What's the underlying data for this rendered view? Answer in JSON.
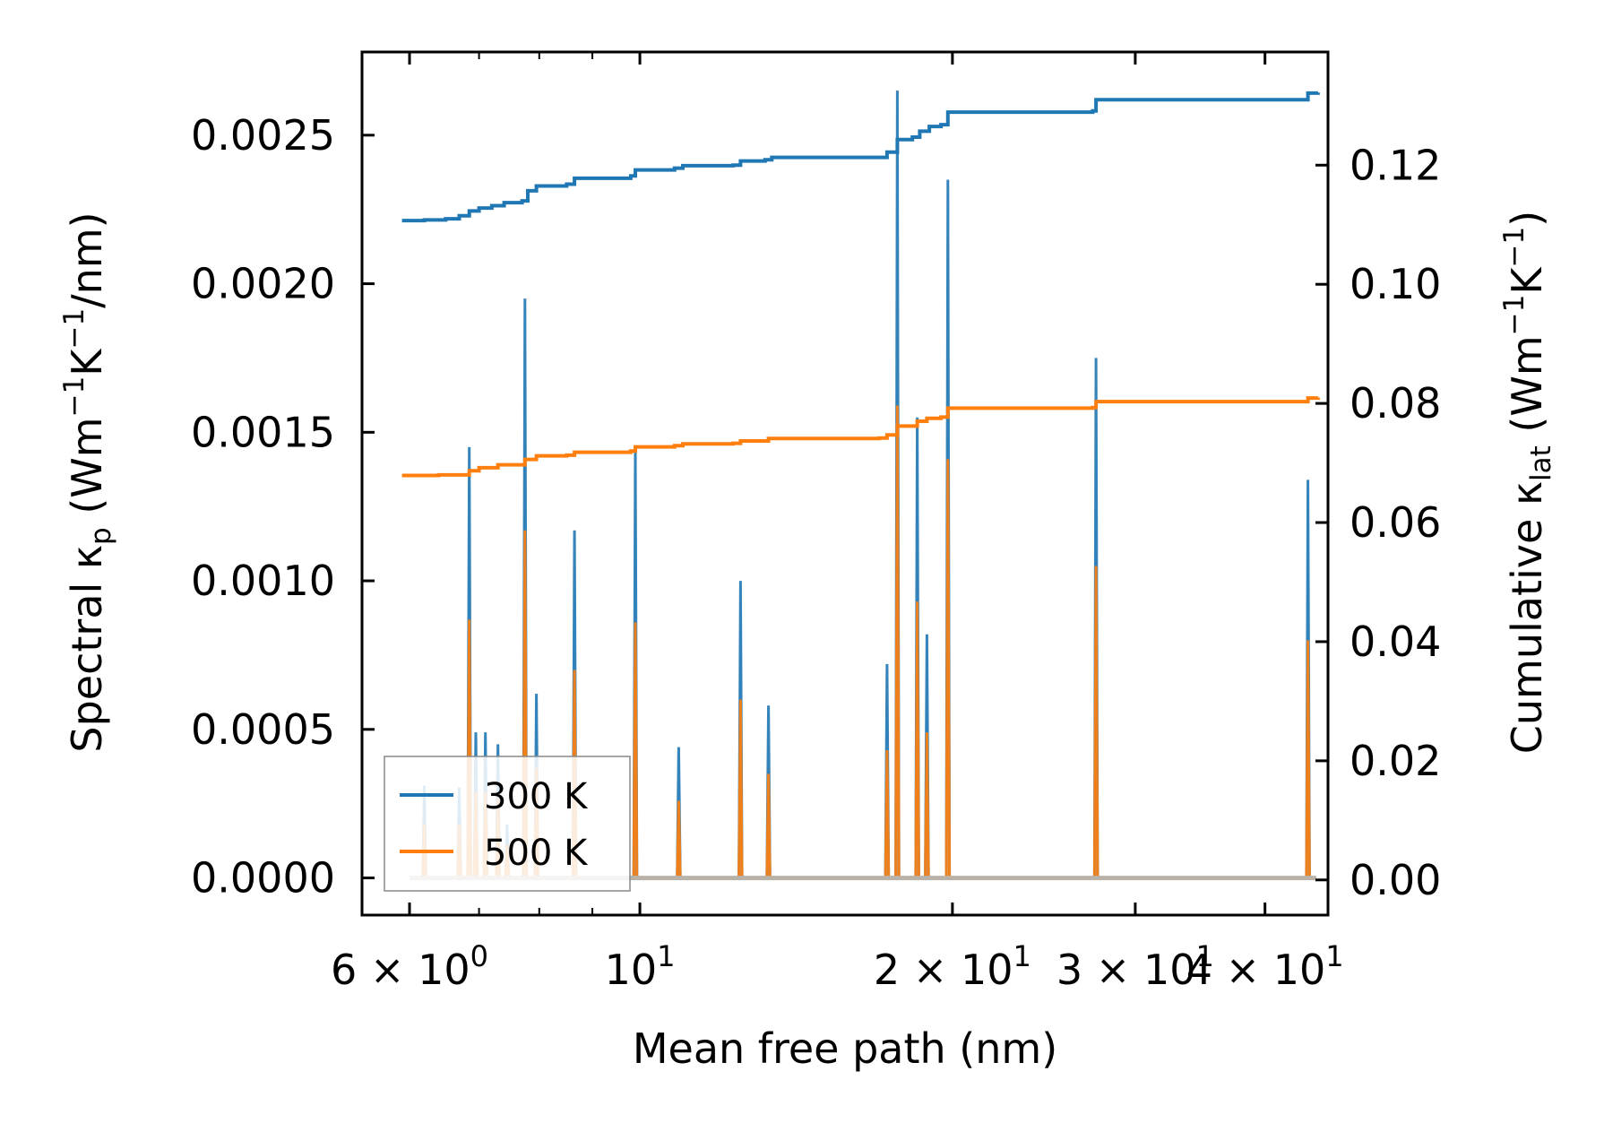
{
  "chart_data": {
    "type": "line",
    "xscale": "log",
    "xlabel": "Mean free path (nm)",
    "ylabel": "Spectral κ_p (Wm⁻¹K⁻¹/nm)",
    "ylabel_parts": {
      "prefix": "Spectral κ",
      "sub": "p",
      "mid": " (Wm",
      "sup1": "−1",
      "k": "K",
      "sup2": "−1",
      "suffix": "/nm)"
    },
    "y2label": "Cumulative κ_lat (Wm⁻¹K⁻¹)",
    "y2label_parts": {
      "prefix": "Cumulative κ",
      "sub": "lat",
      "mid": " (Wm",
      "sup1": "−1",
      "k": "K",
      "sup2": "−1",
      "suffix": ")"
    },
    "xlim": [
      5.4,
      46
    ],
    "ylim": [
      -0.000125,
      0.00278
    ],
    "y2lim": [
      -0.0059,
      0.139
    ],
    "x_ticks": [
      {
        "value": 6,
        "base": "6 × 10",
        "exp": "0"
      },
      {
        "value": 10,
        "base": "10",
        "exp": "1"
      },
      {
        "value": 20,
        "base": "2 × 10",
        "exp": "1"
      },
      {
        "value": 30,
        "base": "3 × 10",
        "exp": "1"
      },
      {
        "value": 40,
        "base": "4 × 10",
        "exp": "1"
      }
    ],
    "x_minor_ticks": [
      7,
      8,
      9
    ],
    "y_ticks": [
      {
        "value": 0.0,
        "label": "0.0000"
      },
      {
        "value": 0.0005,
        "label": "0.0005"
      },
      {
        "value": 0.001,
        "label": "0.0010"
      },
      {
        "value": 0.0015,
        "label": "0.0015"
      },
      {
        "value": 0.002,
        "label": "0.0020"
      },
      {
        "value": 0.0025,
        "label": "0.0025"
      }
    ],
    "y2_ticks": [
      {
        "value": 0.0,
        "label": "0.00"
      },
      {
        "value": 0.02,
        "label": "0.02"
      },
      {
        "value": 0.04,
        "label": "0.04"
      },
      {
        "value": 0.06,
        "label": "0.06"
      },
      {
        "value": 0.08,
        "label": "0.08"
      },
      {
        "value": 0.1,
        "label": "0.10"
      },
      {
        "value": 0.12,
        "label": "0.12"
      }
    ],
    "series": [
      {
        "name": "300 K",
        "color": "#1f77b4",
        "spectral_peaks": [
          [
            6.2,
            0.00031
          ],
          [
            6.7,
            0.000305
          ],
          [
            6.85,
            0.00145
          ],
          [
            6.95,
            0.00049
          ],
          [
            7.1,
            0.00049
          ],
          [
            7.3,
            0.00045
          ],
          [
            7.45,
            0.00018
          ],
          [
            7.75,
            0.00195
          ],
          [
            7.95,
            0.00062
          ],
          [
            8.65,
            0.00117
          ],
          [
            9.9,
            0.00144
          ],
          [
            10.9,
            0.00044
          ],
          [
            12.5,
            0.001
          ],
          [
            13.3,
            0.00058
          ],
          [
            17.3,
            0.00072
          ],
          [
            17.7,
            0.00265
          ],
          [
            18.5,
            0.00155
          ],
          [
            18.9,
            0.00082
          ],
          [
            19.8,
            0.00235
          ],
          [
            27.5,
            0.00175
          ],
          [
            44.0,
            0.00134
          ]
        ],
        "cumulative": [
          [
            5.9,
            0.1107
          ],
          [
            6.2,
            0.1108
          ],
          [
            6.5,
            0.111
          ],
          [
            6.7,
            0.1115
          ],
          [
            6.85,
            0.1123
          ],
          [
            7.0,
            0.1128
          ],
          [
            7.2,
            0.1132
          ],
          [
            7.4,
            0.1137
          ],
          [
            7.7,
            0.114
          ],
          [
            7.8,
            0.1157
          ],
          [
            7.95,
            0.1165
          ],
          [
            8.5,
            0.1168
          ],
          [
            8.65,
            0.1178
          ],
          [
            9.8,
            0.1182
          ],
          [
            9.9,
            0.1192
          ],
          [
            10.8,
            0.1195
          ],
          [
            11.0,
            0.1199
          ],
          [
            12.3,
            0.12
          ],
          [
            12.5,
            0.1207
          ],
          [
            13.2,
            0.1209
          ],
          [
            13.4,
            0.1213
          ],
          [
            17.0,
            0.1213
          ],
          [
            17.3,
            0.1222
          ],
          [
            17.7,
            0.1243
          ],
          [
            18.3,
            0.1247
          ],
          [
            18.6,
            0.1257
          ],
          [
            19.0,
            0.1265
          ],
          [
            19.5,
            0.1268
          ],
          [
            19.8,
            0.1289
          ],
          [
            27.3,
            0.1291
          ],
          [
            27.5,
            0.131
          ],
          [
            43.8,
            0.131
          ],
          [
            44.0,
            0.1321
          ],
          [
            45.0,
            0.1322
          ]
        ]
      },
      {
        "name": "500 K",
        "color": "#ff7f0e",
        "spectral_peaks": [
          [
            6.2,
            0.00018
          ],
          [
            6.7,
            0.00018
          ],
          [
            6.85,
            0.00087
          ],
          [
            6.95,
            0.00029
          ],
          [
            7.1,
            0.00029
          ],
          [
            7.3,
            0.00027
          ],
          [
            7.45,
            0.00011
          ],
          [
            7.75,
            0.00117
          ],
          [
            7.95,
            0.00037
          ],
          [
            8.65,
            0.0007
          ],
          [
            9.9,
            0.00086
          ],
          [
            10.9,
            0.00026
          ],
          [
            12.5,
            0.0006
          ],
          [
            13.3,
            0.00035
          ],
          [
            17.3,
            0.00043
          ],
          [
            17.7,
            0.00159
          ],
          [
            18.5,
            0.00093
          ],
          [
            18.9,
            0.00049
          ],
          [
            19.8,
            0.00141
          ],
          [
            27.5,
            0.00105
          ],
          [
            44.0,
            0.0008
          ]
        ],
        "cumulative": [
          [
            5.9,
            0.0679
          ],
          [
            6.4,
            0.068
          ],
          [
            6.85,
            0.0687
          ],
          [
            7.0,
            0.0692
          ],
          [
            7.3,
            0.0697
          ],
          [
            7.75,
            0.0706
          ],
          [
            7.95,
            0.0712
          ],
          [
            8.5,
            0.0713
          ],
          [
            8.65,
            0.0718
          ],
          [
            9.8,
            0.072
          ],
          [
            9.9,
            0.0727
          ],
          [
            10.8,
            0.0729
          ],
          [
            11.0,
            0.0732
          ],
          [
            12.3,
            0.0733
          ],
          [
            12.5,
            0.0737
          ],
          [
            13.3,
            0.0741
          ],
          [
            17.0,
            0.0742
          ],
          [
            17.3,
            0.0747
          ],
          [
            17.7,
            0.0762
          ],
          [
            18.5,
            0.077
          ],
          [
            18.9,
            0.0775
          ],
          [
            19.5,
            0.0777
          ],
          [
            19.8,
            0.0792
          ],
          [
            27.3,
            0.0793
          ],
          [
            27.5,
            0.0803
          ],
          [
            43.8,
            0.0803
          ],
          [
            44.0,
            0.0809
          ],
          [
            45.0,
            0.081
          ]
        ]
      }
    ],
    "legend": {
      "location": "lower-left",
      "entries": [
        "300 K",
        "500 K"
      ]
    }
  }
}
